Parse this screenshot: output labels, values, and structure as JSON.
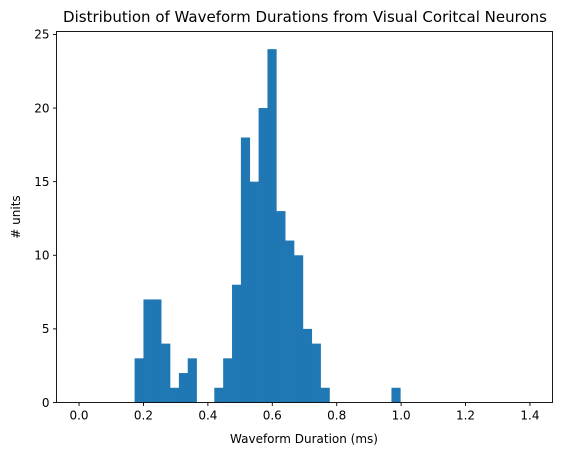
{
  "chart_data": {
    "type": "bar",
    "title": "Distribution of Waveform Durations from Visual Coritcal Neurons",
    "xlabel": "Waveform Duration (ms)",
    "ylabel": "# units",
    "xlim": [
      -0.07,
      1.47
    ],
    "ylim": [
      0,
      25.2
    ],
    "xticks": [
      {
        "value": 0.0,
        "label": "0.0"
      },
      {
        "value": 0.2,
        "label": "0.2"
      },
      {
        "value": 0.4,
        "label": "0.4"
      },
      {
        "value": 0.6,
        "label": "0.6"
      },
      {
        "value": 0.8,
        "label": "0.8"
      },
      {
        "value": 1.0,
        "label": "1.0"
      },
      {
        "value": 1.2,
        "label": "1.2"
      },
      {
        "value": 1.4,
        "label": "1.4"
      }
    ],
    "yticks": [
      {
        "value": 0,
        "label": "0"
      },
      {
        "value": 5,
        "label": "5"
      },
      {
        "value": 10,
        "label": "10"
      },
      {
        "value": 15,
        "label": "15"
      },
      {
        "value": 20,
        "label": "20"
      },
      {
        "value": 25,
        "label": "25"
      }
    ],
    "bin_width": 0.0275,
    "bins": [
      {
        "x": 0.1725,
        "count": 3
      },
      {
        "x": 0.2,
        "count": 7
      },
      {
        "x": 0.2275,
        "count": 7
      },
      {
        "x": 0.255,
        "count": 4
      },
      {
        "x": 0.2825,
        "count": 1
      },
      {
        "x": 0.31,
        "count": 2
      },
      {
        "x": 0.3375,
        "count": 3
      },
      {
        "x": 0.42,
        "count": 1
      },
      {
        "x": 0.4475,
        "count": 3
      },
      {
        "x": 0.475,
        "count": 8
      },
      {
        "x": 0.5025,
        "count": 18
      },
      {
        "x": 0.53,
        "count": 15
      },
      {
        "x": 0.5575,
        "count": 20
      },
      {
        "x": 0.585,
        "count": 24
      },
      {
        "x": 0.6125,
        "count": 13
      },
      {
        "x": 0.64,
        "count": 11
      },
      {
        "x": 0.6675,
        "count": 10
      },
      {
        "x": 0.695,
        "count": 5
      },
      {
        "x": 0.7225,
        "count": 4
      },
      {
        "x": 0.75,
        "count": 1
      },
      {
        "x": 0.97,
        "count": 1
      }
    ],
    "bar_color": "#1f77b4",
    "grid": false
  }
}
